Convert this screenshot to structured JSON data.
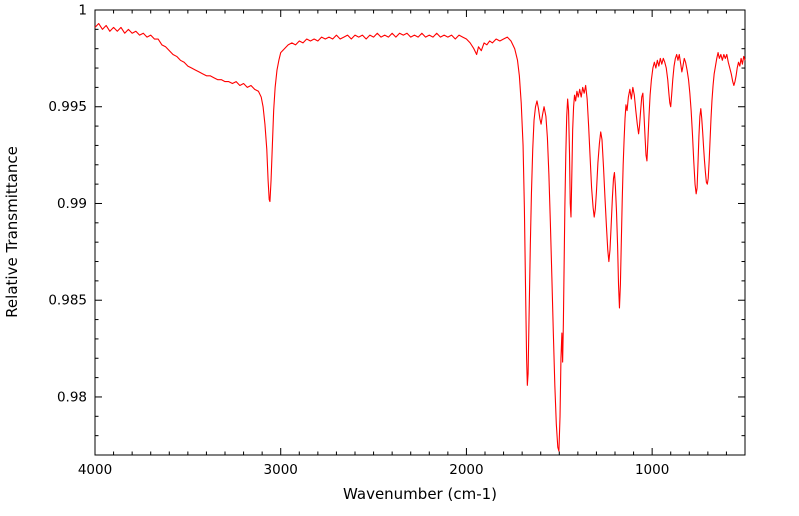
{
  "figure": {
    "background": "#ffffff"
  },
  "chart_data": {
    "type": "line",
    "title": "",
    "xlabel": "Wavenumber (cm-1)",
    "ylabel": "Relative Transmittance",
    "x_axis_reversed": true,
    "xlim": [
      4000,
      500
    ],
    "ylim": [
      0.977,
      1.0
    ],
    "grid": false,
    "legend": "none",
    "line_color": "#ff0000",
    "axis_color": "#000000",
    "x_major_ticks": [
      {
        "v": 4000,
        "label": "4000"
      },
      {
        "v": 3000,
        "label": "3000"
      },
      {
        "v": 2000,
        "label": "2000"
      },
      {
        "v": 1000,
        "label": "1000"
      }
    ],
    "x_minor_step": 100,
    "y_major_ticks": [
      {
        "v": 0.98,
        "label": "0.98"
      },
      {
        "v": 0.985,
        "label": "0.985"
      },
      {
        "v": 0.99,
        "label": "0.99"
      },
      {
        "v": 0.995,
        "label": "0.995"
      },
      {
        "v": 1.0,
        "label": "1"
      }
    ],
    "y_minor_step": 0.001,
    "x": [
      4000,
      3980,
      3960,
      3940,
      3920,
      3900,
      3880,
      3860,
      3840,
      3820,
      3800,
      3780,
      3760,
      3740,
      3720,
      3700,
      3680,
      3660,
      3640,
      3620,
      3600,
      3580,
      3560,
      3540,
      3520,
      3500,
      3480,
      3460,
      3440,
      3420,
      3400,
      3380,
      3360,
      3340,
      3320,
      3300,
      3280,
      3260,
      3240,
      3220,
      3200,
      3180,
      3160,
      3140,
      3120,
      3105,
      3095,
      3085,
      3075,
      3068,
      3062,
      3058,
      3052,
      3045,
      3038,
      3030,
      3020,
      3010,
      3000,
      2980,
      2960,
      2940,
      2920,
      2900,
      2880,
      2860,
      2840,
      2820,
      2800,
      2780,
      2760,
      2740,
      2720,
      2700,
      2680,
      2660,
      2640,
      2620,
      2600,
      2580,
      2560,
      2540,
      2520,
      2500,
      2480,
      2460,
      2440,
      2420,
      2400,
      2380,
      2360,
      2340,
      2320,
      2300,
      2280,
      2260,
      2240,
      2220,
      2200,
      2180,
      2160,
      2140,
      2120,
      2100,
      2080,
      2060,
      2040,
      2020,
      2000,
      1980,
      1960,
      1945,
      1935,
      1920,
      1905,
      1890,
      1875,
      1860,
      1840,
      1820,
      1800,
      1780,
      1760,
      1740,
      1725,
      1715,
      1705,
      1695,
      1688,
      1682,
      1676,
      1672,
      1668,
      1663,
      1656,
      1650,
      1643,
      1636,
      1628,
      1620,
      1612,
      1605,
      1598,
      1590,
      1582,
      1572,
      1564,
      1556,
      1548,
      1540,
      1532,
      1524,
      1516,
      1508,
      1502,
      1496,
      1491,
      1486,
      1482,
      1478,
      1474,
      1470,
      1465,
      1460,
      1455,
      1450,
      1445,
      1441,
      1437,
      1433,
      1428,
      1423,
      1418,
      1412,
      1405,
      1398,
      1390,
      1382,
      1374,
      1366,
      1358,
      1350,
      1342,
      1334,
      1326,
      1318,
      1312,
      1306,
      1300,
      1292,
      1284,
      1277,
      1270,
      1262,
      1254,
      1246,
      1239,
      1233,
      1227,
      1221,
      1214,
      1208,
      1203,
      1198,
      1192,
      1186,
      1181,
      1176,
      1171,
      1166,
      1161,
      1156,
      1151,
      1146,
      1141,
      1135,
      1128,
      1120,
      1112,
      1104,
      1096,
      1088,
      1080,
      1073,
      1068,
      1062,
      1056,
      1050,
      1044,
      1038,
      1033,
      1028,
      1023,
      1017,
      1011,
      1004,
      996,
      988,
      980,
      972,
      964,
      956,
      948,
      940,
      932,
      924,
      916,
      910,
      905,
      900,
      895,
      889,
      882,
      875,
      868,
      861,
      854,
      846,
      840,
      834,
      827,
      820,
      812,
      804,
      797,
      790,
      783,
      776,
      769,
      763,
      758,
      753,
      748,
      743,
      738,
      733,
      728,
      723,
      718,
      713,
      708,
      703,
      698,
      693,
      688,
      683,
      678,
      672,
      666,
      659,
      652,
      645,
      638,
      630,
      622,
      614,
      606,
      598,
      590,
      582,
      574,
      566,
      560,
      554,
      548,
      542,
      535,
      528,
      521,
      514,
      507,
      500
    ],
    "y": [
      0.9991,
      0.9993,
      0.999,
      0.9992,
      0.9989,
      0.9991,
      0.9989,
      0.9991,
      0.9988,
      0.999,
      0.9988,
      0.9989,
      0.9987,
      0.9988,
      0.9986,
      0.9987,
      0.9985,
      0.9985,
      0.9982,
      0.9981,
      0.9979,
      0.9977,
      0.9976,
      0.9974,
      0.9973,
      0.9971,
      0.997,
      0.9969,
      0.9968,
      0.9967,
      0.9966,
      0.9966,
      0.9965,
      0.9964,
      0.9964,
      0.9963,
      0.9963,
      0.9962,
      0.9963,
      0.9961,
      0.9962,
      0.996,
      0.9961,
      0.9959,
      0.9958,
      0.9955,
      0.995,
      0.9941,
      0.9928,
      0.9912,
      0.9902,
      0.9901,
      0.9912,
      0.993,
      0.9948,
      0.996,
      0.9969,
      0.9974,
      0.9978,
      0.998,
      0.9982,
      0.9983,
      0.9982,
      0.9984,
      0.9983,
      0.9985,
      0.9984,
      0.9985,
      0.9984,
      0.9986,
      0.9985,
      0.9986,
      0.9985,
      0.9987,
      0.9985,
      0.9986,
      0.9987,
      0.9985,
      0.9987,
      0.9986,
      0.9987,
      0.9985,
      0.9987,
      0.9986,
      0.9988,
      0.9986,
      0.9987,
      0.9986,
      0.9988,
      0.9986,
      0.9988,
      0.9987,
      0.9988,
      0.9986,
      0.9987,
      0.9986,
      0.9988,
      0.9986,
      0.9987,
      0.9986,
      0.9988,
      0.9986,
      0.9987,
      0.9986,
      0.9987,
      0.9985,
      0.9987,
      0.9986,
      0.9985,
      0.9983,
      0.998,
      0.9977,
      0.9981,
      0.9979,
      0.9983,
      0.9982,
      0.9984,
      0.9983,
      0.9985,
      0.9984,
      0.9985,
      0.9986,
      0.9984,
      0.998,
      0.9974,
      0.9966,
      0.9952,
      0.993,
      0.9898,
      0.9858,
      0.982,
      0.9806,
      0.9812,
      0.984,
      0.9878,
      0.9905,
      0.9928,
      0.9943,
      0.995,
      0.9953,
      0.9949,
      0.9944,
      0.9941,
      0.9946,
      0.995,
      0.9945,
      0.9934,
      0.9915,
      0.989,
      0.9862,
      0.9833,
      0.9806,
      0.9786,
      0.9774,
      0.9772,
      0.979,
      0.982,
      0.9833,
      0.9818,
      0.9838,
      0.9868,
      0.9898,
      0.9925,
      0.9945,
      0.9954,
      0.9948,
      0.9926,
      0.99,
      0.9893,
      0.9912,
      0.9938,
      0.995,
      0.9956,
      0.9953,
      0.9958,
      0.9955,
      0.9959,
      0.9955,
      0.996,
      0.9957,
      0.9961,
      0.9954,
      0.994,
      0.9924,
      0.9908,
      0.9898,
      0.9893,
      0.9897,
      0.9906,
      0.9921,
      0.9931,
      0.9937,
      0.9933,
      0.9919,
      0.9903,
      0.9888,
      0.9876,
      0.987,
      0.9876,
      0.9888,
      0.9903,
      0.9913,
      0.9916,
      0.9909,
      0.9896,
      0.9878,
      0.9858,
      0.9846,
      0.9858,
      0.988,
      0.9902,
      0.992,
      0.9933,
      0.9944,
      0.9951,
      0.9948,
      0.9955,
      0.9959,
      0.9954,
      0.996,
      0.9956,
      0.9948,
      0.9941,
      0.9936,
      0.994,
      0.9948,
      0.9955,
      0.9957,
      0.9946,
      0.9934,
      0.9925,
      0.9922,
      0.9932,
      0.9945,
      0.9956,
      0.9964,
      0.997,
      0.9973,
      0.997,
      0.9974,
      0.9971,
      0.9975,
      0.9972,
      0.9975,
      0.9973,
      0.997,
      0.9964,
      0.9957,
      0.9952,
      0.995,
      0.9956,
      0.9964,
      0.9971,
      0.9975,
      0.9977,
      0.9974,
      0.9977,
      0.9972,
      0.9968,
      0.9971,
      0.9975,
      0.9973,
      0.9969,
      0.9964,
      0.9957,
      0.9948,
      0.9936,
      0.9922,
      0.991,
      0.9905,
      0.9908,
      0.9921,
      0.9935,
      0.9945,
      0.9949,
      0.9944,
      0.9937,
      0.9929,
      0.9922,
      0.9916,
      0.9911,
      0.991,
      0.9913,
      0.9922,
      0.9933,
      0.9944,
      0.9953,
      0.9961,
      0.9967,
      0.9971,
      0.9975,
      0.9978,
      0.9975,
      0.9977,
      0.9974,
      0.9977,
      0.9975,
      0.9977,
      0.9973,
      0.997,
      0.9967,
      0.9963,
      0.9961,
      0.9963,
      0.9966,
      0.997,
      0.9973,
      0.9971,
      0.9975,
      0.9972,
      0.9976,
      0.9974
    ]
  }
}
